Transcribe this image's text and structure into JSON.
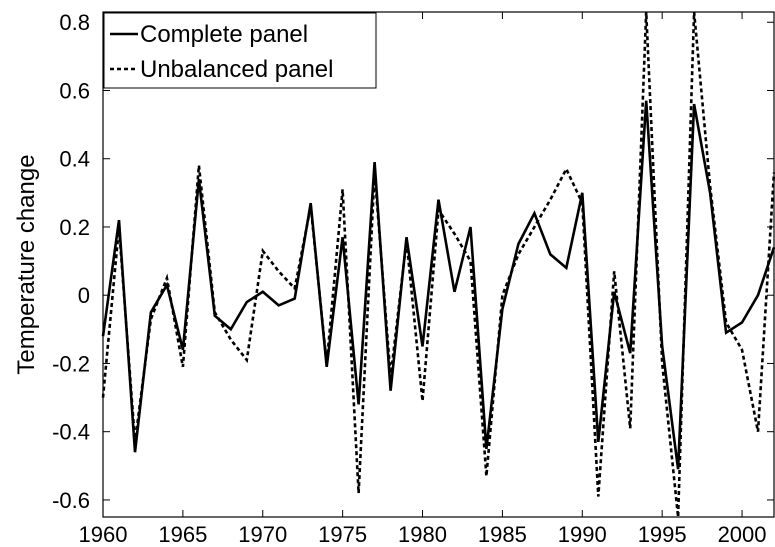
{
  "chart_data": {
    "type": "line",
    "title": "",
    "xlabel": "",
    "ylabel": "Temperature change",
    "xlim": [
      1960,
      2002
    ],
    "ylim": [
      -0.65,
      0.83
    ],
    "grid": false,
    "legend_position": "top-left",
    "x_ticks": [
      1960,
      1965,
      1970,
      1975,
      1980,
      1985,
      1990,
      1995,
      2000
    ],
    "x_tick_labels": [
      "1960",
      "1965",
      "1970",
      "1975",
      "1980",
      "1985",
      "1990",
      "1995",
      "2000"
    ],
    "y_ticks": [
      -0.6,
      -0.4,
      -0.2,
      0,
      0.2,
      0.4,
      0.6,
      0.8
    ],
    "y_tick_labels": [
      "-0.6",
      "-0.4",
      "-0.2",
      "0",
      "0.2",
      "0.4",
      "0.6",
      "0.8"
    ],
    "x": [
      1960,
      1961,
      1962,
      1963,
      1964,
      1965,
      1966,
      1967,
      1968,
      1969,
      1970,
      1971,
      1972,
      1973,
      1974,
      1975,
      1976,
      1977,
      1978,
      1979,
      1980,
      1981,
      1982,
      1983,
      1984,
      1985,
      1986,
      1987,
      1988,
      1989,
      1990,
      1991,
      1992,
      1993,
      1994,
      1995,
      1996,
      1997,
      1998,
      1999,
      2000,
      2001,
      2002
    ],
    "series": [
      {
        "name": "Complete panel",
        "style": "solid",
        "color": "#000000",
        "values": [
          -0.12,
          0.22,
          -0.46,
          -0.05,
          0.03,
          -0.16,
          0.34,
          -0.06,
          -0.1,
          -0.02,
          0.01,
          -0.03,
          -0.01,
          0.27,
          -0.21,
          0.17,
          -0.32,
          0.39,
          -0.28,
          0.17,
          -0.15,
          0.28,
          0.01,
          0.2,
          -0.45,
          -0.04,
          0.15,
          0.24,
          0.12,
          0.08,
          0.3,
          -0.43,
          0.01,
          -0.17,
          0.57,
          -0.15,
          -0.51,
          0.56,
          0.3,
          -0.11,
          -0.08,
          0.0,
          0.14
        ]
      },
      {
        "name": "Unbalanced panel",
        "style": "dashed",
        "color": "#000000",
        "values": [
          -0.3,
          0.2,
          -0.43,
          -0.07,
          0.05,
          -0.21,
          0.38,
          -0.05,
          -0.13,
          -0.19,
          0.13,
          0.07,
          0.02,
          0.26,
          -0.2,
          0.31,
          -0.58,
          0.36,
          -0.24,
          0.16,
          -0.31,
          0.25,
          0.18,
          0.1,
          -0.53,
          0.0,
          0.12,
          0.2,
          0.28,
          0.37,
          0.27,
          -0.59,
          0.07,
          -0.39,
          0.83,
          -0.2,
          -0.65,
          0.83,
          0.32,
          -0.08,
          -0.16,
          -0.4,
          0.36
        ]
      }
    ]
  }
}
